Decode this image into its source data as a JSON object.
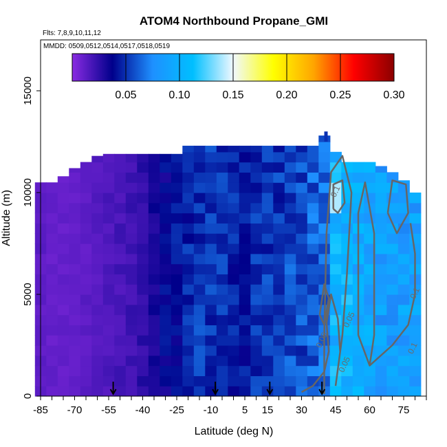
{
  "chart_data": {
    "type": "heatmap",
    "title": "ATOM4 Northbound Propane_GMI",
    "flights_note": "Flts: 7,8,9,10,11,12",
    "dates_note": "MMDD: 0509,0512,0514,0517,0518,0519",
    "xlabel": "Latitude (deg N)",
    "ylabel": "Altitude (m)",
    "xlim": [
      -85,
      85
    ],
    "ylim": [
      0,
      17500
    ],
    "x_ticks": [
      -85,
      -70,
      -55,
      -40,
      -25,
      -10,
      5,
      15,
      30,
      45,
      60,
      75
    ],
    "y_ticks": [
      0,
      5000,
      10000,
      15000
    ],
    "colorbar": {
      "range": [
        0,
        0.3
      ],
      "tick_values": [
        0.05,
        0.1,
        0.15,
        0.2,
        0.25,
        0.3
      ],
      "tick_labels": [
        "0.05",
        "0.10",
        "0.15",
        "0.20",
        "0.25",
        "0.30"
      ],
      "colors": [
        "#8a2be2",
        "#00008b",
        "#1e90ff",
        "#00bfff",
        "#f0f8ff",
        "#ffff00",
        "#ffa500",
        "#ff0000",
        "#8b0000"
      ]
    },
    "profile_markers_lat": [
      -53,
      -8,
      16,
      39
    ],
    "contour_labels": [
      {
        "text": "0.1",
        "lat": 81,
        "alt": 5000
      },
      {
        "text": "0.1",
        "lat": 80,
        "alt": 2300
      },
      {
        "text": "0.05",
        "lat": 52,
        "alt": 3700
      },
      {
        "text": "0.05",
        "lat": 50,
        "alt": 1500
      },
      {
        "text": "0.05",
        "lat": 40,
        "alt": 2700
      },
      {
        "text": "0.1",
        "lat": 46,
        "alt": 10000
      }
    ],
    "columns": [
      {
        "lat": -85,
        "top": 10500,
        "v": 0.012
      },
      {
        "lat": -80,
        "top": 10500,
        "v": 0.01
      },
      {
        "lat": -75,
        "top": 10800,
        "v": 0.01
      },
      {
        "lat": -70,
        "top": 11200,
        "v": 0.01
      },
      {
        "lat": -65,
        "top": 11500,
        "v": 0.012
      },
      {
        "lat": -60,
        "top": 11800,
        "v": 0.014
      },
      {
        "lat": -55,
        "top": 11900,
        "v": 0.016
      },
      {
        "lat": -50,
        "top": 11900,
        "v": 0.018
      },
      {
        "lat": -45,
        "top": 11900,
        "v": 0.02
      },
      {
        "lat": -40,
        "top": 11900,
        "v": 0.024
      },
      {
        "lat": -35,
        "top": 11900,
        "v": 0.03
      },
      {
        "lat": -30,
        "top": 11900,
        "v": 0.036
      },
      {
        "lat": -25,
        "top": 11900,
        "v": 0.04
      },
      {
        "lat": -20,
        "top": 12300,
        "v": 0.045
      },
      {
        "lat": -15,
        "top": 12300,
        "v": 0.05
      },
      {
        "lat": -10,
        "top": 12300,
        "v": 0.05
      },
      {
        "lat": -5,
        "top": 12300,
        "v": 0.048
      },
      {
        "lat": 0,
        "top": 12300,
        "v": 0.045
      },
      {
        "lat": 5,
        "top": 12300,
        "v": 0.042
      },
      {
        "lat": 10,
        "top": 12300,
        "v": 0.048
      },
      {
        "lat": 15,
        "top": 12300,
        "v": 0.05
      },
      {
        "lat": 20,
        "top": 12300,
        "v": 0.05
      },
      {
        "lat": 25,
        "top": 12300,
        "v": 0.055
      },
      {
        "lat": 30,
        "top": 12300,
        "v": 0.055
      },
      {
        "lat": 35,
        "top": 12300,
        "v": 0.06
      },
      {
        "lat": 40,
        "top": 12800,
        "v": 0.065
      },
      {
        "lat": 45,
        "top": 12000,
        "v": 0.1
      },
      {
        "lat": 50,
        "top": 11500,
        "v": 0.1
      },
      {
        "lat": 55,
        "top": 11500,
        "v": 0.095
      },
      {
        "lat": 60,
        "top": 11500,
        "v": 0.09
      },
      {
        "lat": 65,
        "top": 11300,
        "v": 0.085
      },
      {
        "lat": 70,
        "top": 11000,
        "v": 0.085
      },
      {
        "lat": 75,
        "top": 10600,
        "v": 0.085
      },
      {
        "lat": 80,
        "top": 10000,
        "v": 0.085
      }
    ]
  }
}
